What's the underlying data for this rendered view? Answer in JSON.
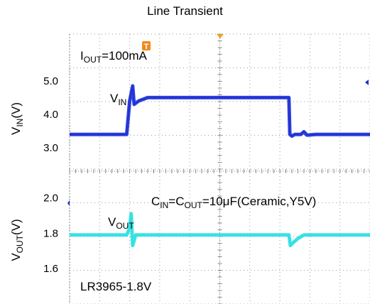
{
  "chart_data": {
    "type": "line",
    "title": "Line Transient",
    "panels": [
      {
        "id": "vin",
        "ylabel": {
          "main": "V",
          "sub": "IN",
          "unit": "(V)"
        },
        "yticks": [
          "5.0",
          "4.0",
          "3.0"
        ],
        "ytick_values": [
          5.0,
          4.0,
          3.0
        ],
        "ylim": [
          2.3,
          6.4
        ],
        "series": [
          {
            "name": "VIN",
            "color": "#1a2fd6",
            "x": [
              0,
              0.07,
              0.19,
              0.2,
              0.21,
              0.215,
              0.23,
              0.26,
              0.3,
              0.4,
              0.5,
              0.6,
              0.7,
              0.73,
              0.733,
              0.74,
              0.75,
              0.76,
              0.77,
              0.78,
              0.79,
              0.82,
              1.0
            ],
            "y": [
              3.4,
              3.4,
              3.4,
              4.4,
              4.85,
              4.3,
              4.4,
              4.5,
              4.5,
              4.5,
              4.5,
              4.5,
              4.5,
              4.5,
              3.4,
              3.35,
              3.4,
              3.4,
              3.4,
              3.48,
              3.38,
              3.4,
              3.4
            ]
          }
        ]
      },
      {
        "id": "vout",
        "ylabel": {
          "main": "V",
          "sub": "OUT",
          "unit": "(V)"
        },
        "yticks": [
          "2.0",
          "1.8",
          "1.6"
        ],
        "ytick_values": [
          2.0,
          1.8,
          1.6
        ],
        "ylim": [
          1.4,
          2.15
        ],
        "series": [
          {
            "name": "VOUT",
            "color": "#2ee0e3",
            "x": [
              0,
              0.19,
              0.2,
              0.205,
              0.21,
              0.22,
              0.24,
              0.3,
              0.5,
              0.7,
              0.73,
              0.735,
              0.74,
              0.76,
              0.78,
              0.82,
              1.0
            ],
            "y": [
              1.79,
              1.79,
              1.83,
              1.91,
              1.73,
              1.79,
              1.79,
              1.79,
              1.79,
              1.79,
              1.79,
              1.73,
              1.74,
              1.77,
              1.79,
              1.79,
              1.79
            ]
          }
        ]
      }
    ],
    "annotations": {
      "iout": {
        "main": "I",
        "sub": "OUT",
        "rest": "=100mA"
      },
      "vin_label": {
        "main": "V",
        "sub": "IN"
      },
      "vout_label": {
        "main": "V",
        "sub": "OUT"
      },
      "cap": {
        "c1": "C",
        "s1": "IN",
        "m": "=C",
        "s2": "OUT",
        "rest": "=10μF(Ceramic,Y5V)"
      },
      "part": "LR3965-1.8V"
    },
    "trigger_marker": "T",
    "grid": true
  }
}
